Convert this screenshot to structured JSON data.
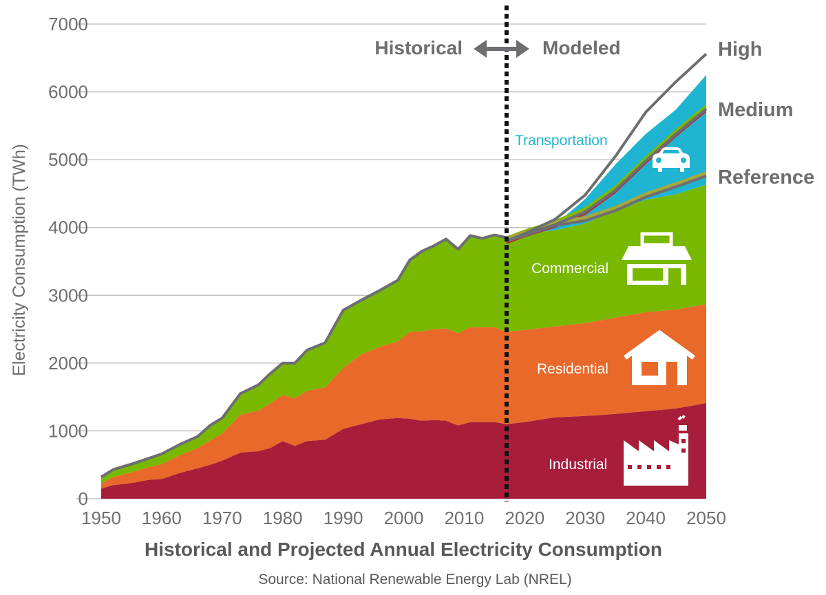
{
  "chart_data": {
    "type": "area",
    "stacked": true,
    "title": "",
    "xlabel": "Historical and Projected Annual Electricity Consumption",
    "ylabel": "Electricity Consumption (TWh)",
    "source": "Source: National Renewable Energy Lab (NREL)",
    "xlim": [
      1950,
      2050
    ],
    "ylim": [
      0,
      7000
    ],
    "x_ticks": [
      "1950",
      "1960",
      "1970",
      "1980",
      "1990",
      "2000",
      "2010",
      "2020",
      "2030",
      "2040",
      "2050"
    ],
    "y_ticks": [
      "0",
      "1000",
      "2000",
      "3000",
      "4000",
      "5000",
      "6000",
      "7000"
    ],
    "grid": true,
    "divider_year": 2017,
    "era_labels": {
      "historical": "Historical",
      "modeled": "Modeled"
    },
    "scenario_labels": [
      "High",
      "Medium",
      "Reference"
    ],
    "x": [
      1950,
      1952,
      1955,
      1958,
      1960,
      1963,
      1966,
      1968,
      1970,
      1973,
      1976,
      1978,
      1980,
      1982,
      1984,
      1987,
      1990,
      1993,
      1996,
      1999,
      2001,
      2003,
      2005,
      2007,
      2009,
      2011,
      2013,
      2015,
      2017,
      2020,
      2025,
      2030,
      2035,
      2040,
      2045,
      2050
    ],
    "series": [
      {
        "name": "Industrial",
        "color": "#a71d3a",
        "values": [
          150,
          200,
          230,
          280,
          290,
          380,
          450,
          500,
          560,
          680,
          700,
          750,
          850,
          780,
          850,
          870,
          1030,
          1100,
          1170,
          1190,
          1180,
          1150,
          1160,
          1150,
          1080,
          1130,
          1130,
          1130,
          1100,
          1130,
          1200,
          1220,
          1250,
          1290,
          1330,
          1410
        ]
      },
      {
        "name": "Residential",
        "color": "#e8692a",
        "values": [
          70,
          120,
          160,
          190,
          220,
          260,
          300,
          360,
          400,
          560,
          600,
          660,
          680,
          700,
          740,
          770,
          900,
          1030,
          1070,
          1130,
          1280,
          1320,
          1340,
          1360,
          1360,
          1400,
          1400,
          1400,
          1360,
          1360,
          1340,
          1370,
          1420,
          1460,
          1460,
          1460
        ]
      },
      {
        "name": "Commercial",
        "color": "#78b800",
        "values": [
          100,
          110,
          120,
          130,
          150,
          160,
          170,
          220,
          230,
          310,
          380,
          440,
          470,
          520,
          600,
          660,
          850,
          800,
          830,
          900,
          1060,
          1180,
          1230,
          1320,
          1240,
          1350,
          1310,
          1360,
          1390,
          1420,
          1420,
          1470,
          1580,
          1660,
          1700,
          1760
        ]
      },
      {
        "name": "Transportation",
        "color": "#1fb5d2",
        "values": [
          0,
          0,
          0,
          0,
          0,
          0,
          0,
          0,
          0,
          0,
          0,
          0,
          0,
          0,
          0,
          0,
          0,
          0,
          0,
          0,
          0,
          0,
          0,
          0,
          0,
          0,
          0,
          0,
          0,
          0,
          80,
          360,
          680,
          970,
          1250,
          1620
        ]
      }
    ],
    "scenario_totals": [
      {
        "name": "High",
        "x": [
          2017,
          2020,
          2025,
          2030,
          2035,
          2040,
          2045,
          2050
        ],
        "values": [
          3800,
          3910,
          4120,
          4480,
          5050,
          5700,
          6150,
          6560
        ]
      },
      {
        "name": "Medium",
        "x": [
          2017,
          2020,
          2025,
          2030,
          2035,
          2040,
          2045,
          2050
        ],
        "values": [
          3800,
          3900,
          4040,
          4230,
          4550,
          4980,
          5380,
          5750
        ]
      },
      {
        "name": "Reference",
        "x": [
          2017,
          2020,
          2025,
          2030,
          2035,
          2040,
          2045,
          2050
        ],
        "values": [
          3800,
          3880,
          4030,
          4100,
          4250,
          4450,
          4600,
          4760
        ]
      }
    ],
    "annotations": [
      "Transportation",
      "Commercial",
      "Residential",
      "Industrial"
    ]
  },
  "colors": {
    "industrial": "#a71d3a",
    "residential": "#e8692a",
    "commercial": "#78b800",
    "transportation": "#1fb5d2",
    "outline": "#6d6e71",
    "divider": "#111111"
  },
  "icons": [
    "car-icon",
    "store-icon",
    "house-icon",
    "factory-icon",
    "double-arrow-icon"
  ]
}
